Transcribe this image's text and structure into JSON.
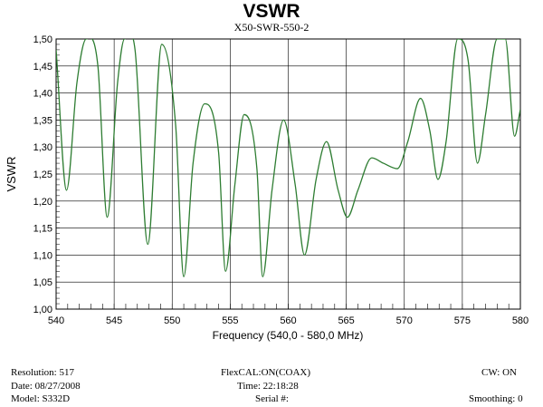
{
  "chart_data": {
    "type": "line",
    "title": "VSWR",
    "subtitle": "X50-SWR-550-2",
    "xlabel": "Frequency (540,0 - 580,0 MHz)",
    "ylabel": "VSWR",
    "xlim": [
      540,
      580
    ],
    "ylim": [
      1.0,
      1.5
    ],
    "grid": true,
    "x_ticks": [
      "540",
      "545",
      "550",
      "555",
      "560",
      "565",
      "570",
      "575",
      "580"
    ],
    "y_ticks": [
      "1,00",
      "1,05",
      "1,10",
      "1,15",
      "1,20",
      "1,25",
      "1,30",
      "1,35",
      "1,40",
      "1,45",
      "1,50"
    ],
    "line_color": "#2e7d32",
    "series": [
      {
        "points": [
          [
            540.0,
            1.48
          ],
          [
            540.9,
            1.22
          ],
          [
            541.8,
            1.42
          ],
          [
            542.6,
            1.5
          ],
          [
            543.6,
            1.45
          ],
          [
            544.4,
            1.17
          ],
          [
            545.3,
            1.42
          ],
          [
            545.9,
            1.5
          ],
          [
            546.8,
            1.48
          ],
          [
            547.9,
            1.12
          ],
          [
            549.1,
            1.49
          ],
          [
            550.3,
            1.34
          ],
          [
            551.0,
            1.06
          ],
          [
            551.8,
            1.27
          ],
          [
            552.8,
            1.38
          ],
          [
            554.0,
            1.29
          ],
          [
            554.6,
            1.07
          ],
          [
            555.4,
            1.23
          ],
          [
            556.2,
            1.36
          ],
          [
            557.3,
            1.26
          ],
          [
            557.8,
            1.06
          ],
          [
            558.6,
            1.22
          ],
          [
            559.6,
            1.35
          ],
          [
            560.6,
            1.23
          ],
          [
            561.4,
            1.1
          ],
          [
            562.4,
            1.24
          ],
          [
            563.3,
            1.31
          ],
          [
            564.3,
            1.22
          ],
          [
            565.1,
            1.17
          ],
          [
            566.0,
            1.22
          ],
          [
            567.2,
            1.28
          ],
          [
            568.2,
            1.27
          ],
          [
            569.4,
            1.26
          ],
          [
            570.3,
            1.31
          ],
          [
            571.4,
            1.39
          ],
          [
            572.2,
            1.33
          ],
          [
            572.9,
            1.24
          ],
          [
            573.6,
            1.31
          ],
          [
            574.6,
            1.5
          ],
          [
            575.5,
            1.46
          ],
          [
            576.3,
            1.27
          ],
          [
            577.0,
            1.36
          ],
          [
            578.0,
            1.5
          ],
          [
            578.7,
            1.5
          ],
          [
            579.5,
            1.32
          ],
          [
            580.0,
            1.37
          ]
        ]
      }
    ]
  },
  "footer": {
    "resolution": "Resolution:  517",
    "date": "Date: 08/27/2008",
    "model": "Model:  S332D",
    "flexcal": "FlexCAL:ON(COAX)",
    "time": "Time: 22:18:28",
    "serial": "Serial #:",
    "cw": "CW: ON",
    "smoothing": "Smoothing:  0"
  }
}
